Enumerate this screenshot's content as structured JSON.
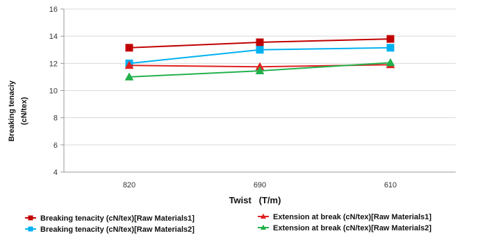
{
  "chart_data": {
    "type": "line",
    "xlabel": "Twist   (T/m)",
    "ylabel_lines": [
      "Breaking tenaciy",
      "(cN/tex)"
    ],
    "categories": [
      "820",
      "690",
      "610"
    ],
    "ylim": [
      4,
      16
    ],
    "yticks": [
      4,
      6,
      8,
      10,
      12,
      14,
      16
    ],
    "grid": "horizontal",
    "legend_position": "bottom",
    "series": [
      {
        "name": "Breaking tenacity (cN/tex)[Raw Materials1]",
        "values": [
          13.15,
          13.55,
          13.8
        ],
        "color": "#c00000",
        "marker": "square"
      },
      {
        "name": "Breaking tenacity (cN/tex)[Raw Materials2]",
        "values": [
          12.0,
          13.0,
          13.15
        ],
        "color": "#00b0f0",
        "marker": "square"
      },
      {
        "name": "Extension at break (cN/tex)[Raw Materials1]",
        "values": [
          11.85,
          11.75,
          11.9
        ],
        "color": "#e02020",
        "marker": "triangle"
      },
      {
        "name": "Extension at break (cN/tex)[Raw Materials2]",
        "values": [
          11.0,
          11.45,
          12.05
        ],
        "color": "#22b14c",
        "marker": "triangle"
      }
    ]
  }
}
